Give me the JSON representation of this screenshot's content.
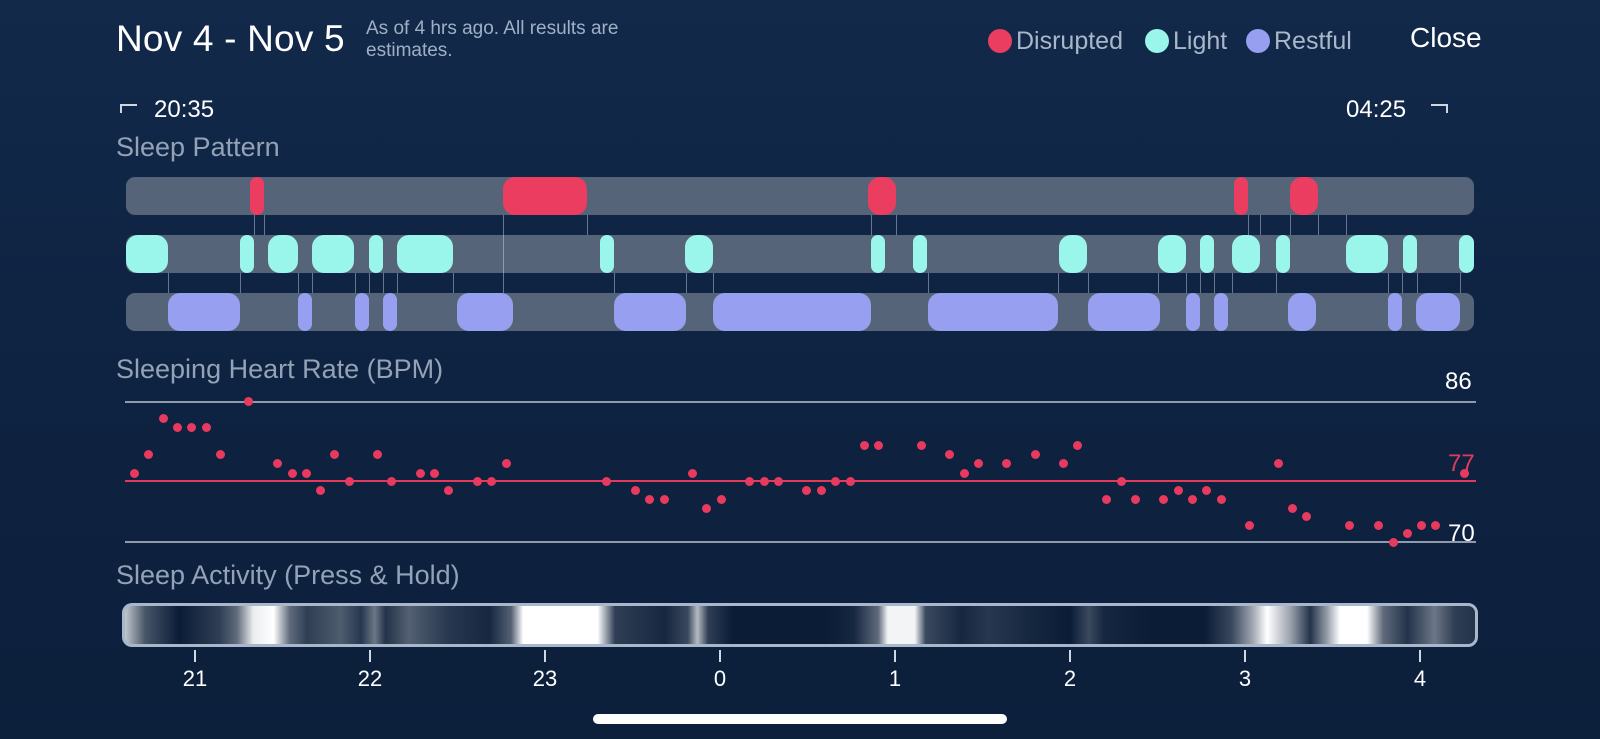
{
  "header": {
    "title": "Nov 4 - Nov 5",
    "subtitle": "As of 4 hrs ago. All results are estimates.",
    "close_label": "Close"
  },
  "legend": [
    {
      "label": "Disrupted",
      "color": "#ea3d5f"
    },
    {
      "label": "Light",
      "color": "#9af5ea"
    },
    {
      "label": "Restful",
      "color": "#979ff0"
    }
  ],
  "range": {
    "start": "20:35",
    "end": "04:25"
  },
  "sleep_pattern": {
    "title": "Sleep Pattern",
    "colors": {
      "disrupted": "#ea3d5f",
      "light": "#9af5ea",
      "restful": "#979ff0",
      "track": "#566479"
    }
  },
  "heart_rate": {
    "title": "Sleeping Heart Rate (BPM)",
    "max": "86",
    "avg": "77",
    "min": "70",
    "colors": {
      "dot": "#e83a5e",
      "avg_line": "#e23a5c",
      "ref_line": "#9aa6b6"
    }
  },
  "activity": {
    "title": "Sleep Activity (Press & Hold)"
  },
  "x_axis": {
    "ticks": [
      "21",
      "22",
      "23",
      "0",
      "1",
      "2",
      "3",
      "4"
    ]
  }
}
